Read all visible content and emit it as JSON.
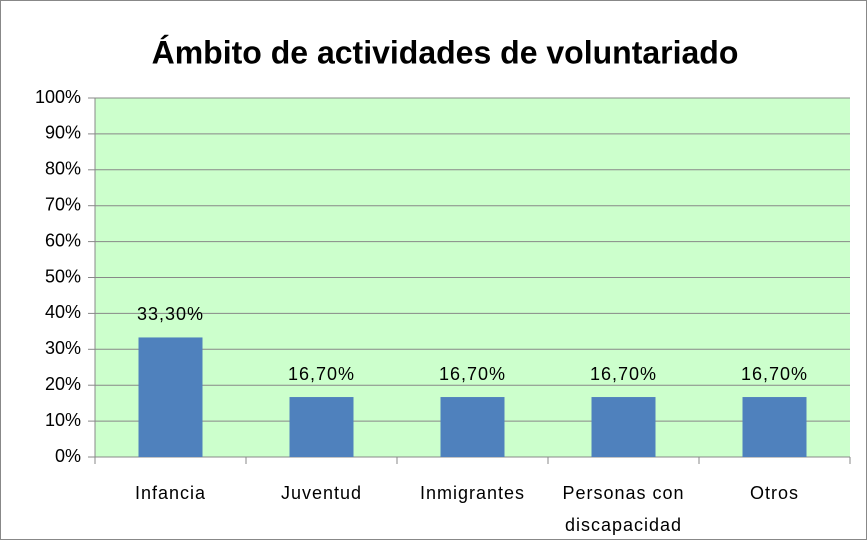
{
  "chart_data": {
    "type": "bar",
    "title": "Ámbito de actividades de voluntariado",
    "categories": [
      "Infancia",
      "Juventud",
      "Inmigrantes",
      "Personas con discapacidad",
      "Otros"
    ],
    "values": [
      33.3,
      16.7,
      16.7,
      16.7,
      16.7
    ],
    "value_labels": [
      "33,30%",
      "16,70%",
      "16,70%",
      "16,70%",
      "16,70%"
    ],
    "color": "#4f81bd",
    "ylim": [
      0,
      100
    ],
    "yticks": [
      {
        "value": 0,
        "label": "0%"
      },
      {
        "value": 10,
        "label": "10%"
      },
      {
        "value": 20,
        "label": "20%"
      },
      {
        "value": 30,
        "label": "30%"
      },
      {
        "value": 40,
        "label": "40%"
      },
      {
        "value": 50,
        "label": "50%"
      },
      {
        "value": 60,
        "label": "60%"
      },
      {
        "value": 70,
        "label": "70%"
      },
      {
        "value": 80,
        "label": "80%"
      },
      {
        "value": 90,
        "label": "90%"
      },
      {
        "value": 100,
        "label": "100%"
      }
    ],
    "grid": true
  }
}
